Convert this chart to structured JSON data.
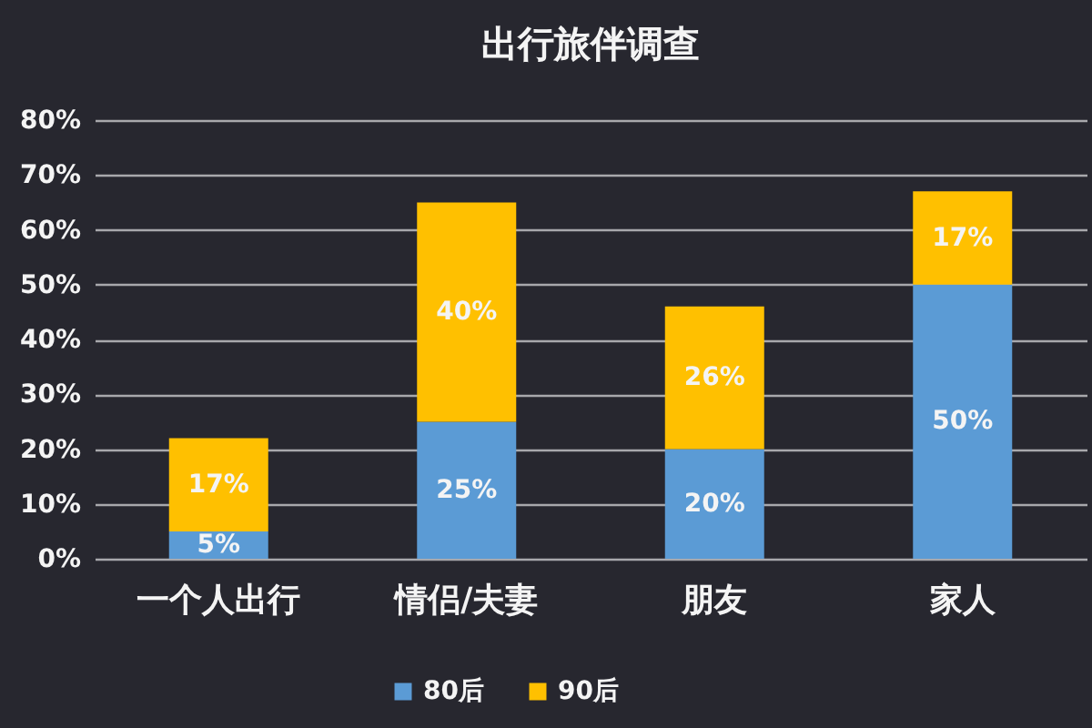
{
  "chart_data": {
    "type": "bar",
    "title": "出行旅伴调查",
    "categories": [
      "一个人出行",
      "情侣/夫妻",
      "朋友",
      "家人"
    ],
    "series": [
      {
        "name": "80后",
        "color": "#5b9bd5",
        "values": [
          5,
          25,
          20,
          50
        ],
        "value_labels": [
          "5%",
          "25%",
          "20%",
          "50%"
        ]
      },
      {
        "name": "90后",
        "color": "#ffc000",
        "values": [
          17,
          40,
          26,
          17
        ],
        "value_labels": [
          "17%",
          "40%",
          "26%",
          "17%"
        ]
      }
    ],
    "stacked": true,
    "ylim": [
      0,
      80
    ],
    "yticks": [
      {
        "value": 0,
        "label": "0%"
      },
      {
        "value": 10,
        "label": "10%"
      },
      {
        "value": 20,
        "label": "20%"
      },
      {
        "value": 30,
        "label": "30%"
      },
      {
        "value": 40,
        "label": "40%"
      },
      {
        "value": 50,
        "label": "50%"
      },
      {
        "value": 60,
        "label": "60%"
      },
      {
        "value": 70,
        "label": "70%"
      },
      {
        "value": 80,
        "label": "80%"
      }
    ],
    "grid": "y",
    "legend": "bottom"
  }
}
